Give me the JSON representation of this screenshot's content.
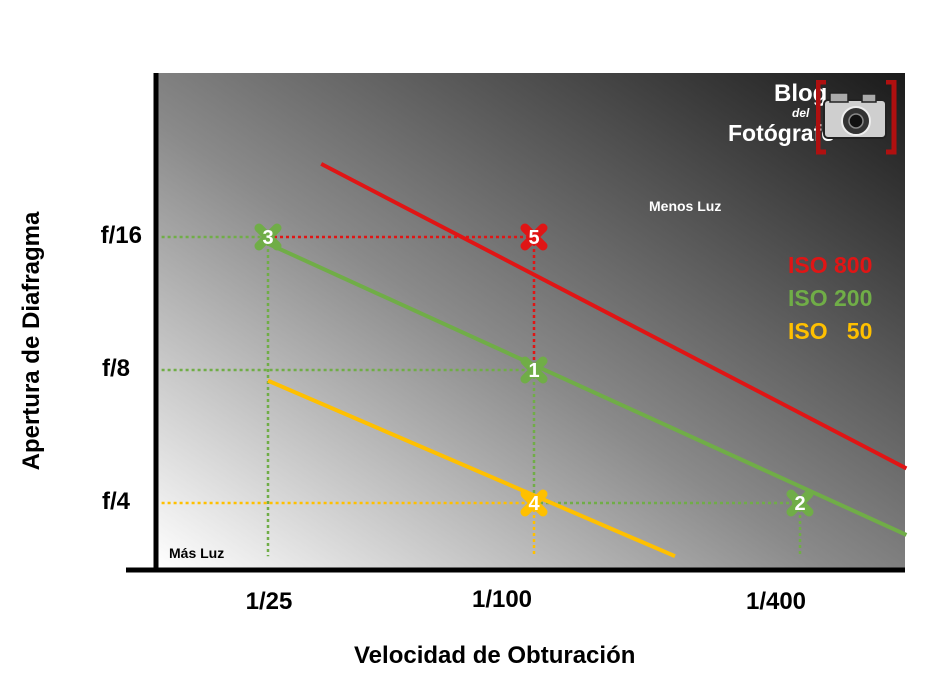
{
  "chart_data": {
    "type": "line",
    "title": "",
    "xlabel": "Velocidad de Obturación",
    "ylabel": "Apertura de Diafragma",
    "x_ticks": [
      "1/25",
      "1/100",
      "1/400"
    ],
    "y_ticks": [
      "f/16",
      "f/8",
      "f/4"
    ],
    "series": [
      {
        "name": "ISO 800",
        "color": "#e01515",
        "points": [
          [
            0.2,
            2.55
          ],
          [
            2.4,
            0.26
          ]
        ]
      },
      {
        "name": "ISO 200",
        "color": "#70ad47",
        "points": [
          [
            0.0,
            1.95
          ],
          [
            2.4,
            -0.24
          ]
        ]
      },
      {
        "name": "ISO 50",
        "color": "#ffc000",
        "points": [
          [
            0.0,
            0.92
          ],
          [
            1.53,
            -0.4
          ]
        ]
      }
    ],
    "markers": [
      {
        "label": "1",
        "x": 1,
        "y": 1,
        "series": "ISO 200"
      },
      {
        "label": "2",
        "x": 2,
        "y": 0,
        "series": "ISO 200"
      },
      {
        "label": "3",
        "x": 0,
        "y": 2,
        "series": "ISO 200"
      },
      {
        "label": "4",
        "x": 1,
        "y": 0,
        "series": "ISO 50"
      },
      {
        "label": "5",
        "x": 1,
        "y": 2,
        "series": "ISO 800"
      }
    ],
    "guides": [
      {
        "color": "#70ad47",
        "from": [
          -0.4,
          2
        ],
        "to": [
          0,
          2
        ]
      },
      {
        "color": "#70ad47",
        "from": [
          0,
          2
        ],
        "to": [
          0,
          -0.4
        ]
      },
      {
        "color": "#e01515",
        "from": [
          0,
          2
        ],
        "to": [
          1,
          2
        ]
      },
      {
        "color": "#e01515",
        "from": [
          1,
          2
        ],
        "to": [
          1,
          1
        ]
      },
      {
        "color": "#70ad47",
        "from": [
          -0.4,
          1
        ],
        "to": [
          1,
          1
        ]
      },
      {
        "color": "#70ad47",
        "from": [
          1,
          1
        ],
        "to": [
          1,
          0
        ]
      },
      {
        "color": "#ffc000",
        "from": [
          -0.4,
          0
        ],
        "to": [
          1,
          0
        ]
      },
      {
        "color": "#70ad47",
        "from": [
          1,
          0
        ],
        "to": [
          2,
          0
        ]
      },
      {
        "color": "#ffc000",
        "from": [
          1,
          0
        ],
        "to": [
          1,
          -0.4
        ]
      },
      {
        "color": "#70ad47",
        "from": [
          2,
          0
        ],
        "to": [
          2,
          -0.4
        ]
      }
    ],
    "annotations": {
      "less_light": "Menos Luz",
      "more_light": "Más Luz"
    },
    "legend": {
      "placement": "right",
      "items": [
        {
          "text": "ISO 800",
          "color": "#e01515"
        },
        {
          "text": "ISO 200",
          "color": "#70ad47"
        },
        {
          "text": "ISO   50",
          "color": "#ffc000"
        }
      ]
    },
    "grid": false
  },
  "logo": {
    "line1": "Blog",
    "line2": "del",
    "line3": "Fotógrafo"
  }
}
